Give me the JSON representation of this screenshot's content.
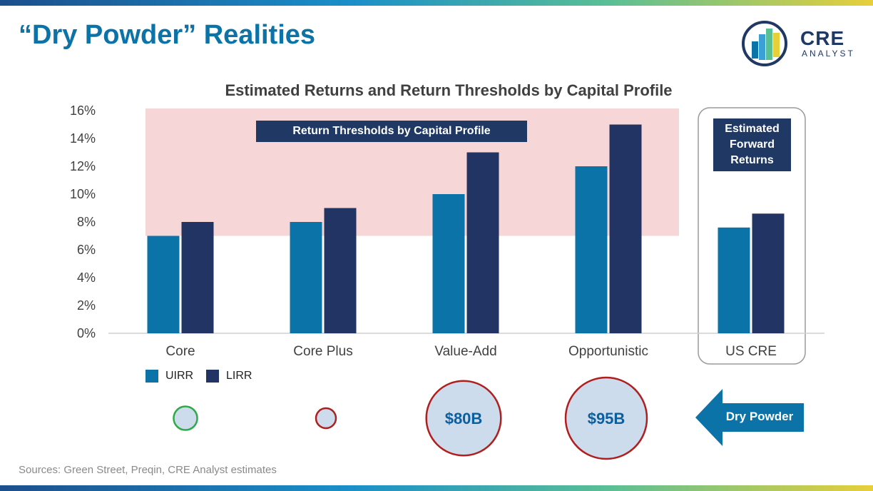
{
  "slide": {
    "title": "“Dry Powder” Realities",
    "sources": "Sources: Green Street, Preqin, CRE Analyst estimates"
  },
  "logo": {
    "name": "CRE",
    "subtitle": "ANALYST"
  },
  "colors": {
    "uirr": "#0b73a8",
    "lirr": "#223463",
    "threshold_band": "#f6d6d6",
    "circle_fill": "#cddced",
    "green_border": "#2eaa4a",
    "red_border": "#b01e1e",
    "badge": "#1f3864"
  },
  "annotations": {
    "threshold_label": "Return Thresholds by Capital Profile",
    "forward_label": "Estimated Forward Returns",
    "dry_powder_label": "Dry Powder"
  },
  "chart_data": {
    "type": "bar",
    "title": "Estimated Returns and Return Thresholds by Capital Profile",
    "categories": [
      "Core",
      "Core Plus",
      "Value-Add",
      "Opportunistic",
      "US CRE"
    ],
    "series": [
      {
        "name": "UIRR",
        "values": [
          7,
          8,
          10,
          12,
          7.6
        ]
      },
      {
        "name": "LIRR",
        "values": [
          8,
          9,
          13,
          15,
          8.6
        ]
      }
    ],
    "ylim": [
      0,
      16
    ],
    "yticks": [
      "0%",
      "2%",
      "4%",
      "6%",
      "8%",
      "10%",
      "12%",
      "14%",
      "16%"
    ],
    "ytick_values": [
      0,
      2,
      4,
      6,
      8,
      10,
      12,
      14,
      16
    ],
    "threshold_band": [
      7,
      16
    ],
    "legend_position": "bottom-left",
    "dry_powder": [
      {
        "category": "Core",
        "label": "",
        "amount_billions": 8,
        "border": "green"
      },
      {
        "category": "Core Plus",
        "label": "",
        "amount_billions": 4,
        "border": "red"
      },
      {
        "category": "Value-Add",
        "label": "$80B",
        "amount_billions": 80,
        "border": "red"
      },
      {
        "category": "Opportunistic",
        "label": "$95B",
        "amount_billions": 95,
        "border": "red"
      }
    ]
  }
}
